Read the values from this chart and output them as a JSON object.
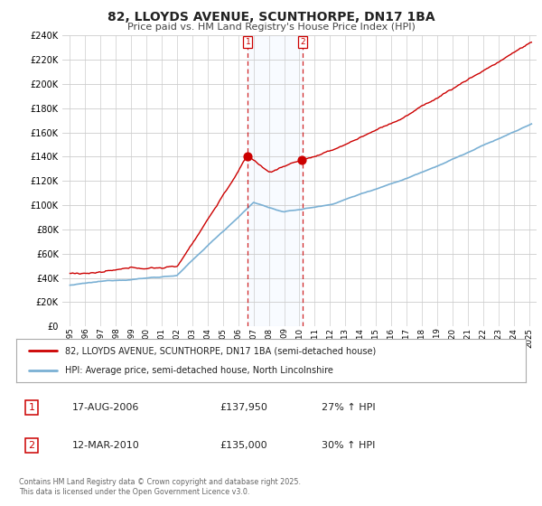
{
  "title": "82, LLOYDS AVENUE, SCUNTHORPE, DN17 1BA",
  "subtitle": "Price paid vs. HM Land Registry's House Price Index (HPI)",
  "ylim": [
    0,
    240000
  ],
  "yticks": [
    0,
    20000,
    40000,
    60000,
    80000,
    100000,
    120000,
    140000,
    160000,
    180000,
    200000,
    220000,
    240000
  ],
  "xlim_start": 1994.5,
  "xlim_end": 2025.5,
  "property_color": "#cc0000",
  "hpi_color": "#7ab0d4",
  "vline_color": "#cc0000",
  "span_color": "#ddeeff",
  "legend_label_property": "82, LLOYDS AVENUE, SCUNTHORPE, DN17 1BA (semi-detached house)",
  "legend_label_hpi": "HPI: Average price, semi-detached house, North Lincolnshire",
  "transaction1_date": "17-AUG-2006",
  "transaction1_price": "£137,950",
  "transaction1_hpi": "27% ↑ HPI",
  "transaction1_year": 2006.625,
  "transaction1_value": 137950,
  "transaction2_date": "12-MAR-2010",
  "transaction2_price": "£135,000",
  "transaction2_hpi": "30% ↑ HPI",
  "transaction2_year": 2010.19,
  "transaction2_value": 135000,
  "copyright_text": "Contains HM Land Registry data © Crown copyright and database right 2025.\nThis data is licensed under the Open Government Licence v3.0.",
  "background_color": "#ffffff",
  "grid_color": "#cccccc"
}
